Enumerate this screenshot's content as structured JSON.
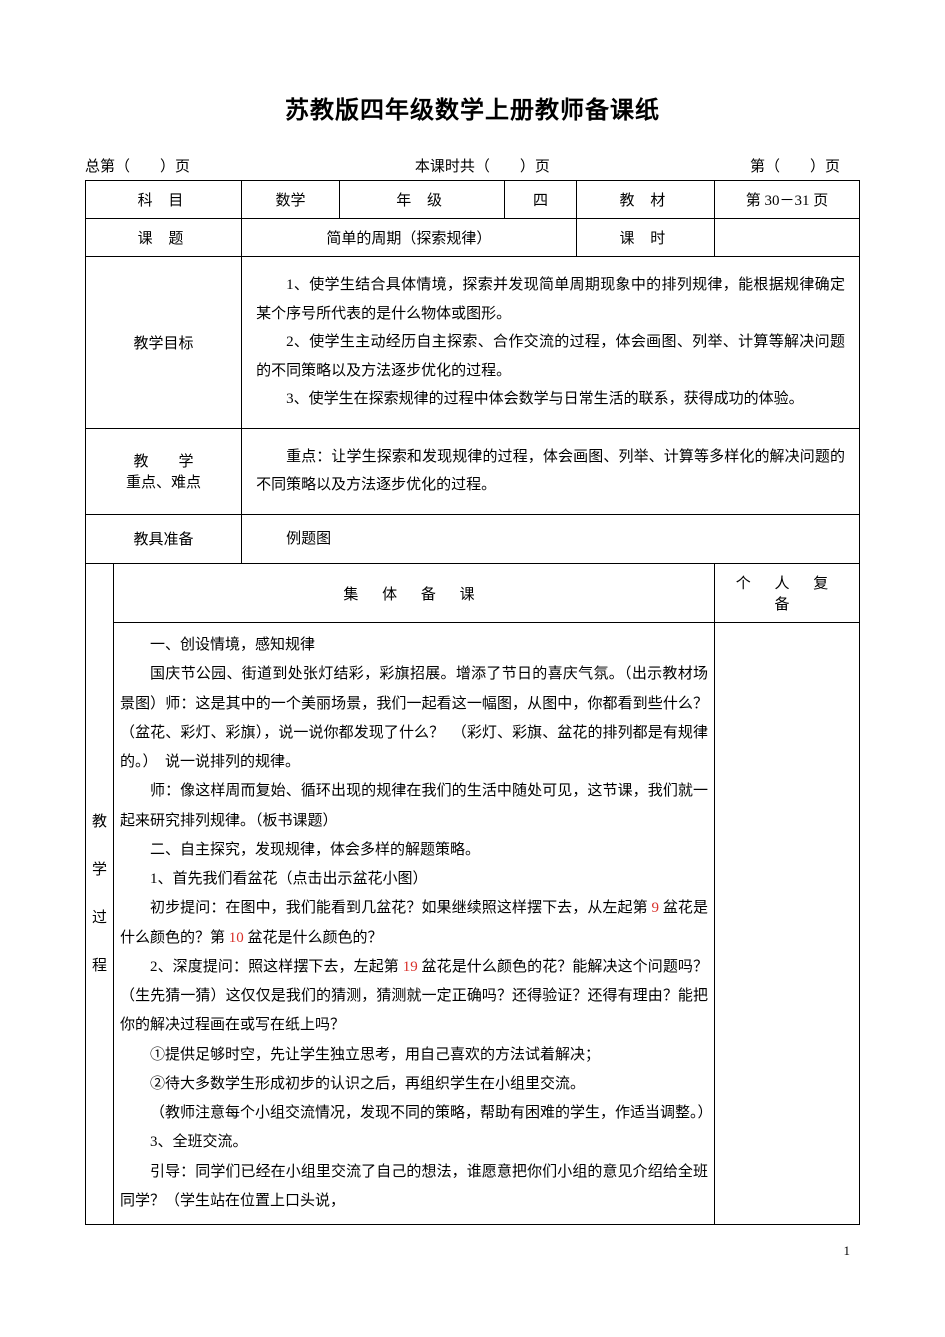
{
  "title": "苏教版四年级数学上册教师备课纸",
  "header": {
    "left": "总第（　　）页",
    "mid": "本课时共（　　）页",
    "right": "第（　　）页"
  },
  "row1": {
    "subject_label": "科 目",
    "subject_value": "数学",
    "grade_label": "年 级",
    "grade_value": "四",
    "material_label": "教 材",
    "material_value": "第 30－31 页"
  },
  "row2": {
    "topic_label": "课 题",
    "topic_value": "简单的周期（探索规律）",
    "hours_label": "课 时",
    "hours_value": ""
  },
  "goals": {
    "label": "教学目标",
    "p1": "1、使学生结合具体情境，探索并发现简单周期现象中的排列规律，能根据规律确定某个序号所代表的是什么物体或图形。",
    "p2": "2、使学生主动经历自主探索、合作交流的过程，体会画图、列举、计算等解决问题的不同策略以及方法逐步优化的过程。",
    "p3": "3、使学生在探索规律的过程中体会数学与日常生活的联系，获得成功的体验。"
  },
  "focus": {
    "label_line1": "教　　学",
    "label_line2": "重点、难点",
    "text": "重点：让学生探索和发现规律的过程，体会画图、列举、计算等多样化的解决问题的不同策略以及方法逐步优化的过程。"
  },
  "tools": {
    "label": "教具准备",
    "text": "例题图"
  },
  "plan": {
    "header_left": "集 体 备 课",
    "header_right": "个 人 复 备",
    "vert_label": [
      "教",
      "学",
      "过",
      "程"
    ],
    "paragraphs": [
      {
        "t": "一、创设情境，感知规律"
      },
      {
        "t": "国庆节公园、街道到处张灯结彩，彩旗招展。增添了节日的喜庆气氛。（出示教材场景图）师：这是其中的一个美丽场景，我们一起看这一幅图，从图中，你都看到些什么？（盆花、彩灯、彩旗），说一说你都发现了什么？　（彩灯、彩旗、盆花的排列都是有规律的。）　说一说排列的规律。"
      },
      {
        "t": "师：像这样周而复始、循环出现的规律在我们的生活中随处可见，这节课，我们就一起来研究排列规律。（板书课题）"
      },
      {
        "t": "二、自主探究，发现规律，体会多样的解题策略。"
      },
      {
        "t": "1、首先我们看盆花（点击出示盆花小图）"
      },
      {
        "pre": "初步提问：在图中，我们能看到几盆花？如果继续照这样摆下去，从左起第 ",
        "n1": "9",
        "mid": " 盆花是什么颜色的？第 ",
        "n2": "10",
        "post": " 盆花是什么颜色的？"
      },
      {
        "pre": "2、深度提问：照这样摆下去，左起第 ",
        "n1": "19",
        "post": " 盆花是什么颜色的花？能解决这个问题吗？（生先猜一猜）这仅仅是我们的猜测，猜测就一定正确吗？还得验证？还得有理由？能把你的解决过程画在或写在纸上吗？"
      },
      {
        "t": "①提供足够时空，先让学生独立思考，用自己喜欢的方法试着解决；"
      },
      {
        "t": "②待大多数学生形成初步的认识之后，再组织学生在小组里交流。"
      },
      {
        "t": "（教师注意每个小组交流情况，发现不同的策略，帮助有困难的学生，作适当调整。）"
      },
      {
        "t": "3、全班交流。"
      },
      {
        "t": "引导：同学们已经在小组里交流了自己的想法，谁愿意把你们小组的意见介绍给全班同学？（学生站在位置上口头说，"
      }
    ]
  },
  "page_number": "1"
}
